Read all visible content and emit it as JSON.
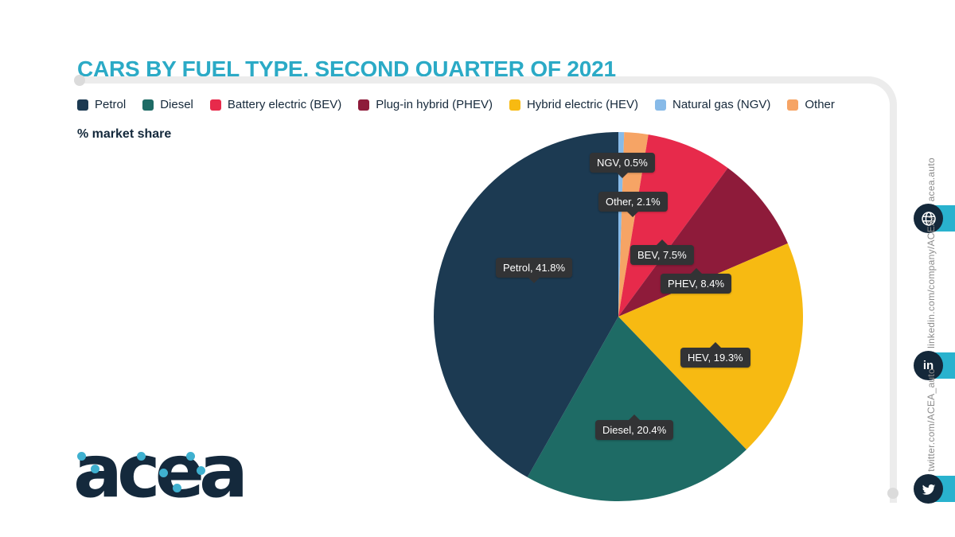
{
  "title": "CARS BY FUEL TYPE, SECOND QUARTER OF 2021",
  "subtitle": "% market share",
  "colors": {
    "accent_teal": "#2BAAC6",
    "frame_gray": "#ECECEC",
    "tooltip_bg": "#323335",
    "text_navy": "#14293C",
    "sidebar_text_gray": "#8C8C8C",
    "social_pill_cyan": "#29B2CE",
    "social_circle_navy": "#14283A"
  },
  "legend": [
    {
      "label": "Petrol",
      "color": "#1C3A52"
    },
    {
      "label": "Diesel",
      "color": "#1E6B65"
    },
    {
      "label": "Battery electric (BEV)",
      "color": "#E72A4B"
    },
    {
      "label": "Plug-in hybrid (PHEV)",
      "color": "#8E1B3A"
    },
    {
      "label": "Hybrid electric (HEV)",
      "color": "#F7BA12"
    },
    {
      "label": "Natural gas (NGV)",
      "color": "#87BAE8"
    },
    {
      "label": "Other",
      "color": "#F6A465"
    }
  ],
  "chart_data": {
    "type": "pie",
    "title": "CARS BY FUEL TYPE, SECOND QUARTER OF 2021",
    "units": "% market share",
    "start_angle_deg": 0,
    "direction": "clockwise",
    "slices": [
      {
        "name": "Natural gas (NGV)",
        "short": "NGV",
        "value": 0.5,
        "color": "#87BAE8",
        "callout": "NGV, 0.5%"
      },
      {
        "name": "Other",
        "short": "Other",
        "value": 2.1,
        "color": "#F6A465",
        "callout": "Other, 2.1%"
      },
      {
        "name": "Battery electric (BEV)",
        "short": "BEV",
        "value": 7.5,
        "color": "#E72A4B",
        "callout": "BEV, 7.5%"
      },
      {
        "name": "Plug-in hybrid (PHEV)",
        "short": "PHEV",
        "value": 8.4,
        "color": "#8E1B3A",
        "callout": "PHEV, 8.4%"
      },
      {
        "name": "Hybrid electric (HEV)",
        "short": "HEV",
        "value": 19.3,
        "color": "#F7BA12",
        "callout": "HEV, 19.3%"
      },
      {
        "name": "Diesel",
        "short": "Diesel",
        "value": 20.4,
        "color": "#1E6B65",
        "callout": "Diesel, 20.4%"
      },
      {
        "name": "Petrol",
        "short": "Petrol",
        "value": 41.8,
        "color": "#1C3A52",
        "callout": "Petrol, 41.8%"
      }
    ]
  },
  "logo_text": "acea",
  "sidebar": {
    "links": [
      {
        "label": "acea.auto",
        "icon": "globe"
      },
      {
        "label": "linkedin.com/company/ACEA/",
        "icon": "linkedin"
      },
      {
        "label": "twitter.com/ACEA_auto",
        "icon": "twitter"
      }
    ]
  }
}
